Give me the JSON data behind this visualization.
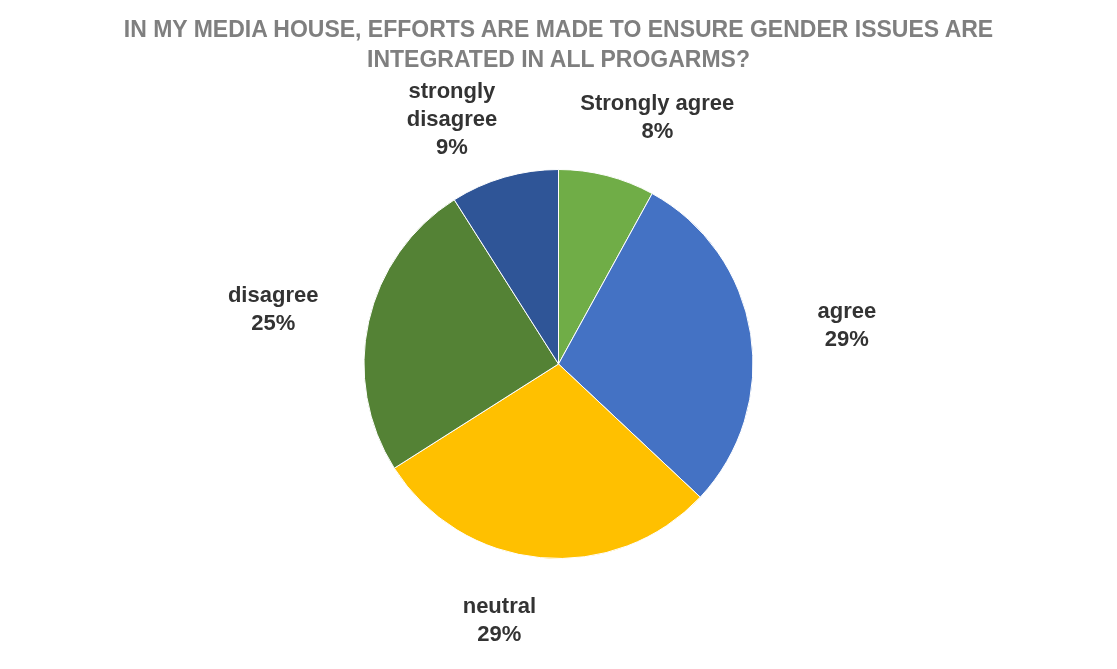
{
  "chart_data": {
    "type": "pie",
    "title": "IN MY MEDIA HOUSE, EFFORTS ARE MADE TO ENSURE GENDER ISSUES ARE INTEGRATED IN ALL PROGARMS?",
    "categories": [
      "Strongly agree",
      "agree",
      "neutral",
      "disagree",
      "strongly disagree"
    ],
    "values": [
      8,
      29,
      29,
      25,
      9
    ],
    "value_labels": [
      "8%",
      "29%",
      "29%",
      "25%",
      "9%"
    ],
    "colors": [
      "#70ad47",
      "#4472c4",
      "#ffc000",
      "#548235",
      "#2f5597"
    ],
    "legend": false
  }
}
